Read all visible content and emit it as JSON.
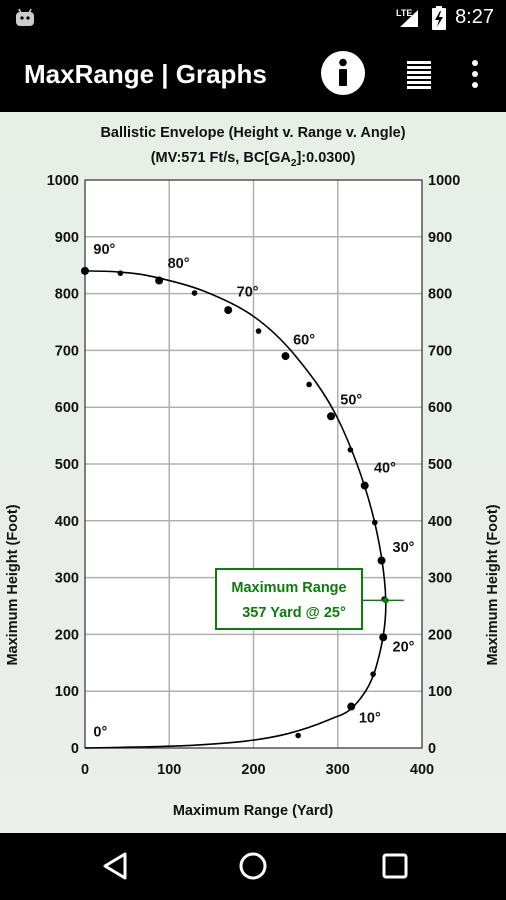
{
  "status_bar": {
    "network": "LTE",
    "time": "8:27"
  },
  "app_bar": {
    "title": "MaxRange | Graphs"
  },
  "callout": {
    "line1": "Maximum Range",
    "line2": "357 Yard @ 25°"
  },
  "colors": {
    "callout": "#0a7d0a",
    "curve": "#000000",
    "grid": "#aaaaaa"
  },
  "chart_data": {
    "type": "line",
    "title": "Ballistic Envelope (Height v. Range v. Angle)",
    "subtitle_pre": "(MV:571 Ft/s, BC[GA",
    "subtitle_sub": "2",
    "subtitle_post": "]:0.0300)",
    "xlabel": "Maximum Range (Yard)",
    "ylabel_left": "Maximum Height (Foot)",
    "ylabel_right": "Maximum Height (Foot)",
    "xlim": [
      0,
      400
    ],
    "ylim": [
      0,
      1000
    ],
    "x_ticks": [
      0,
      100,
      200,
      300,
      400
    ],
    "y_ticks": [
      0,
      100,
      200,
      300,
      400,
      500,
      600,
      700,
      800,
      900,
      1000
    ],
    "grid": true,
    "series": [
      {
        "x": [
          0,
          70,
          130,
          190,
          240,
          290,
          320,
          345,
          357,
          340,
          300,
          250,
          200,
          140,
          80,
          40,
          0
        ],
        "y": [
          0,
          2,
          5,
          12,
          25,
          50,
          75,
          140,
          260,
          420,
          580,
          690,
          760,
          805,
          830,
          838,
          840
        ]
      }
    ],
    "markers": {
      "x": [
        0,
        42,
        88,
        130,
        170,
        206,
        238,
        266,
        292,
        315,
        332,
        344,
        352,
        355,
        354,
        342,
        316,
        253
      ],
      "y": [
        840,
        836,
        823,
        801,
        771,
        734,
        690,
        640,
        584,
        525,
        462,
        397,
        330,
        262,
        195,
        130,
        73,
        22
      ]
    },
    "angle_labels": [
      {
        "text": "90°",
        "x": 10,
        "y": 870
      },
      {
        "text": "80°",
        "x": 98,
        "y": 845
      },
      {
        "text": "70°",
        "x": 180,
        "y": 795
      },
      {
        "text": "60°",
        "x": 247,
        "y": 710
      },
      {
        "text": "50°",
        "x": 303,
        "y": 605
      },
      {
        "text": "40°",
        "x": 343,
        "y": 485
      },
      {
        "text": "30°",
        "x": 365,
        "y": 345
      },
      {
        "text": "20°",
        "x": 365,
        "y": 170
      },
      {
        "text": "10°",
        "x": 325,
        "y": 45
      },
      {
        "text": "0°",
        "x": 10,
        "y": 20
      }
    ],
    "max_point": {
      "x": 357,
      "y": 260
    }
  }
}
